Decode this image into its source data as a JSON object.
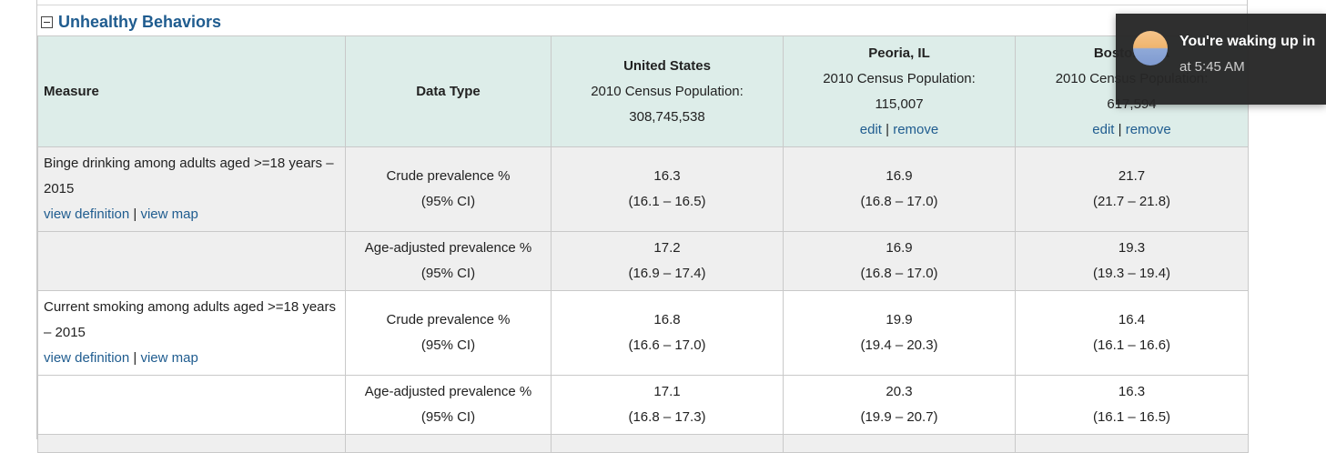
{
  "section": {
    "title": "Unhealthy Behaviors"
  },
  "table": {
    "headers": {
      "measure": "Measure",
      "data_type": "Data Type",
      "locations": [
        {
          "name": "United States",
          "pop_label": "2010 Census Population:",
          "pop_value": "308,745,538",
          "edit": "",
          "remove": ""
        },
        {
          "name": "Peoria, IL",
          "pop_label": "2010 Census Population:",
          "pop_value": "115,007",
          "edit": "edit",
          "remove": "remove"
        },
        {
          "name": "Boston, MA",
          "pop_label": "2010 Census Population:",
          "pop_value": "617,594",
          "edit": "edit",
          "remove": "remove"
        }
      ]
    },
    "rows": [
      {
        "measure": "Binge drinking among adults aged >=18 years – 2015",
        "view_definition": "view definition",
        "view_map": "view map",
        "data_type": "Crude prevalence %",
        "ci_label": "(95% CI)",
        "values": [
          {
            "value": "16.3",
            "ci": "(16.1 – 16.5)"
          },
          {
            "value": "16.9",
            "ci": "(16.8 – 17.0)"
          },
          {
            "value": "21.7",
            "ci": "(21.7 – 21.8)"
          }
        ]
      },
      {
        "measure": "",
        "view_definition": "",
        "view_map": "",
        "data_type": "Age-adjusted prevalence %",
        "ci_label": "(95% CI)",
        "values": [
          {
            "value": "17.2",
            "ci": "(16.9 – 17.4)"
          },
          {
            "value": "16.9",
            "ci": "(16.8 – 17.0)"
          },
          {
            "value": "19.3",
            "ci": "(19.3 – 19.4)"
          }
        ]
      },
      {
        "measure": "Current smoking among adults aged >=18 years – 2015",
        "view_definition": "view definition",
        "view_map": "view map",
        "data_type": "Crude prevalence %",
        "ci_label": "(95% CI)",
        "values": [
          {
            "value": "16.8",
            "ci": "(16.6 – 17.0)"
          },
          {
            "value": "19.9",
            "ci": "(19.4 – 20.3)"
          },
          {
            "value": "16.4",
            "ci": "(16.1 – 16.6)"
          }
        ]
      },
      {
        "measure": "",
        "view_definition": "",
        "view_map": "",
        "data_type": "Age-adjusted prevalence %",
        "ci_label": "(95% CI)",
        "values": [
          {
            "value": "17.1",
            "ci": "(16.8 – 17.3)"
          },
          {
            "value": "20.3",
            "ci": "(19.9 – 20.7)"
          },
          {
            "value": "16.3",
            "ci": "(16.1 – 16.5)"
          }
        ]
      }
    ]
  },
  "notification": {
    "title": "You're waking up in",
    "subtitle": "at 5:45 AM",
    "avatar_icon": "sunrise-avatar-icon"
  }
}
